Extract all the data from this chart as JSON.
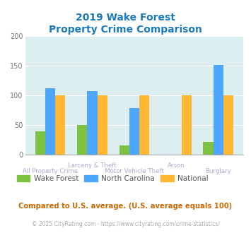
{
  "title_line1": "2019 Wake Forest",
  "title_line2": "Property Crime Comparison",
  "categories": [
    "All Property Crime",
    "Larceny & Theft",
    "Motor Vehicle Theft",
    "Arson",
    "Burglary"
  ],
  "wake_forest": [
    40,
    50,
    16,
    0,
    22
  ],
  "north_carolina": [
    112,
    107,
    79,
    0,
    152
  ],
  "national": [
    100,
    100,
    100,
    100,
    100
  ],
  "color_wf": "#7dc242",
  "color_nc": "#4da6ff",
  "color_nat": "#ffb733",
  "bg_color": "#ddeef0",
  "ylim": [
    0,
    200
  ],
  "yticks": [
    0,
    50,
    100,
    150,
    200
  ],
  "footer_text": "Compared to U.S. average. (U.S. average equals 100)",
  "copyright_text": "© 2025 CityRating.com - https://www.cityrating.com/crime-statistics/",
  "legend_labels": [
    "Wake Forest",
    "North Carolina",
    "National"
  ],
  "title_color": "#1a7abf",
  "footer_color": "#cc6600",
  "copyright_color": "#aaaaaa",
  "xlabel_top_color": "#aaaacc",
  "xlabel_bot_color": "#aaaacc"
}
